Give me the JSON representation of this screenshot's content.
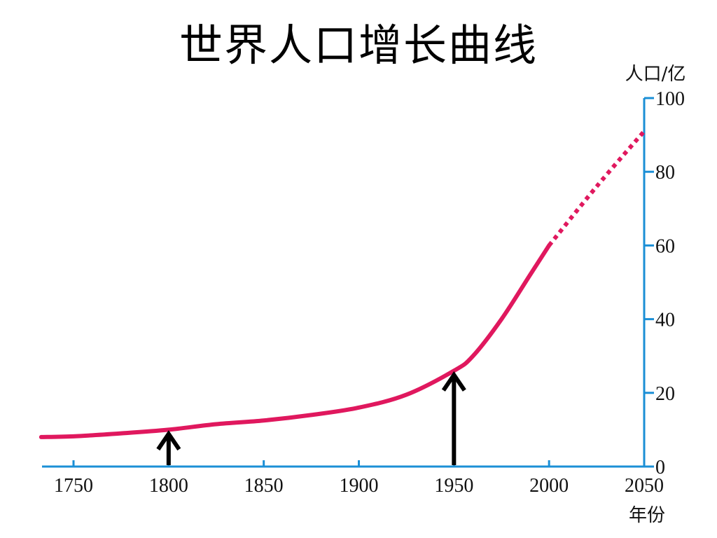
{
  "chart_data": {
    "type": "line",
    "title": "世界人口增长曲线",
    "xlabel": "年份",
    "ylabel": "人口/亿",
    "xlim": [
      1750,
      2050
    ],
    "ylim": [
      0,
      100
    ],
    "x_ticks": [
      "1750",
      "1800",
      "1850",
      "1900",
      "1950",
      "2000",
      "2050"
    ],
    "y_ticks": [
      "0",
      "20",
      "40",
      "60",
      "80",
      "100"
    ],
    "series": [
      {
        "style": "solid",
        "points": [
          [
            1733,
            8
          ],
          [
            1750,
            8.2
          ],
          [
            1775,
            9
          ],
          [
            1800,
            10
          ],
          [
            1825,
            11.5
          ],
          [
            1850,
            12.5
          ],
          [
            1875,
            14
          ],
          [
            1900,
            16
          ],
          [
            1925,
            19.5
          ],
          [
            1950,
            26
          ],
          [
            1960,
            30
          ],
          [
            1975,
            40
          ],
          [
            1990,
            52
          ],
          [
            2000,
            60
          ]
        ]
      },
      {
        "style": "dotted",
        "points": [
          [
            2000,
            60
          ],
          [
            2025,
            76
          ],
          [
            2050,
            91
          ]
        ]
      }
    ],
    "annotations": [
      {
        "type": "arrow",
        "x": 1800,
        "y": 10
      },
      {
        "type": "arrow",
        "x": 1950,
        "y": 26
      }
    ],
    "colors": {
      "line": "#e0185e",
      "axis": "#1b8fd6",
      "arrow": "#000000"
    }
  }
}
